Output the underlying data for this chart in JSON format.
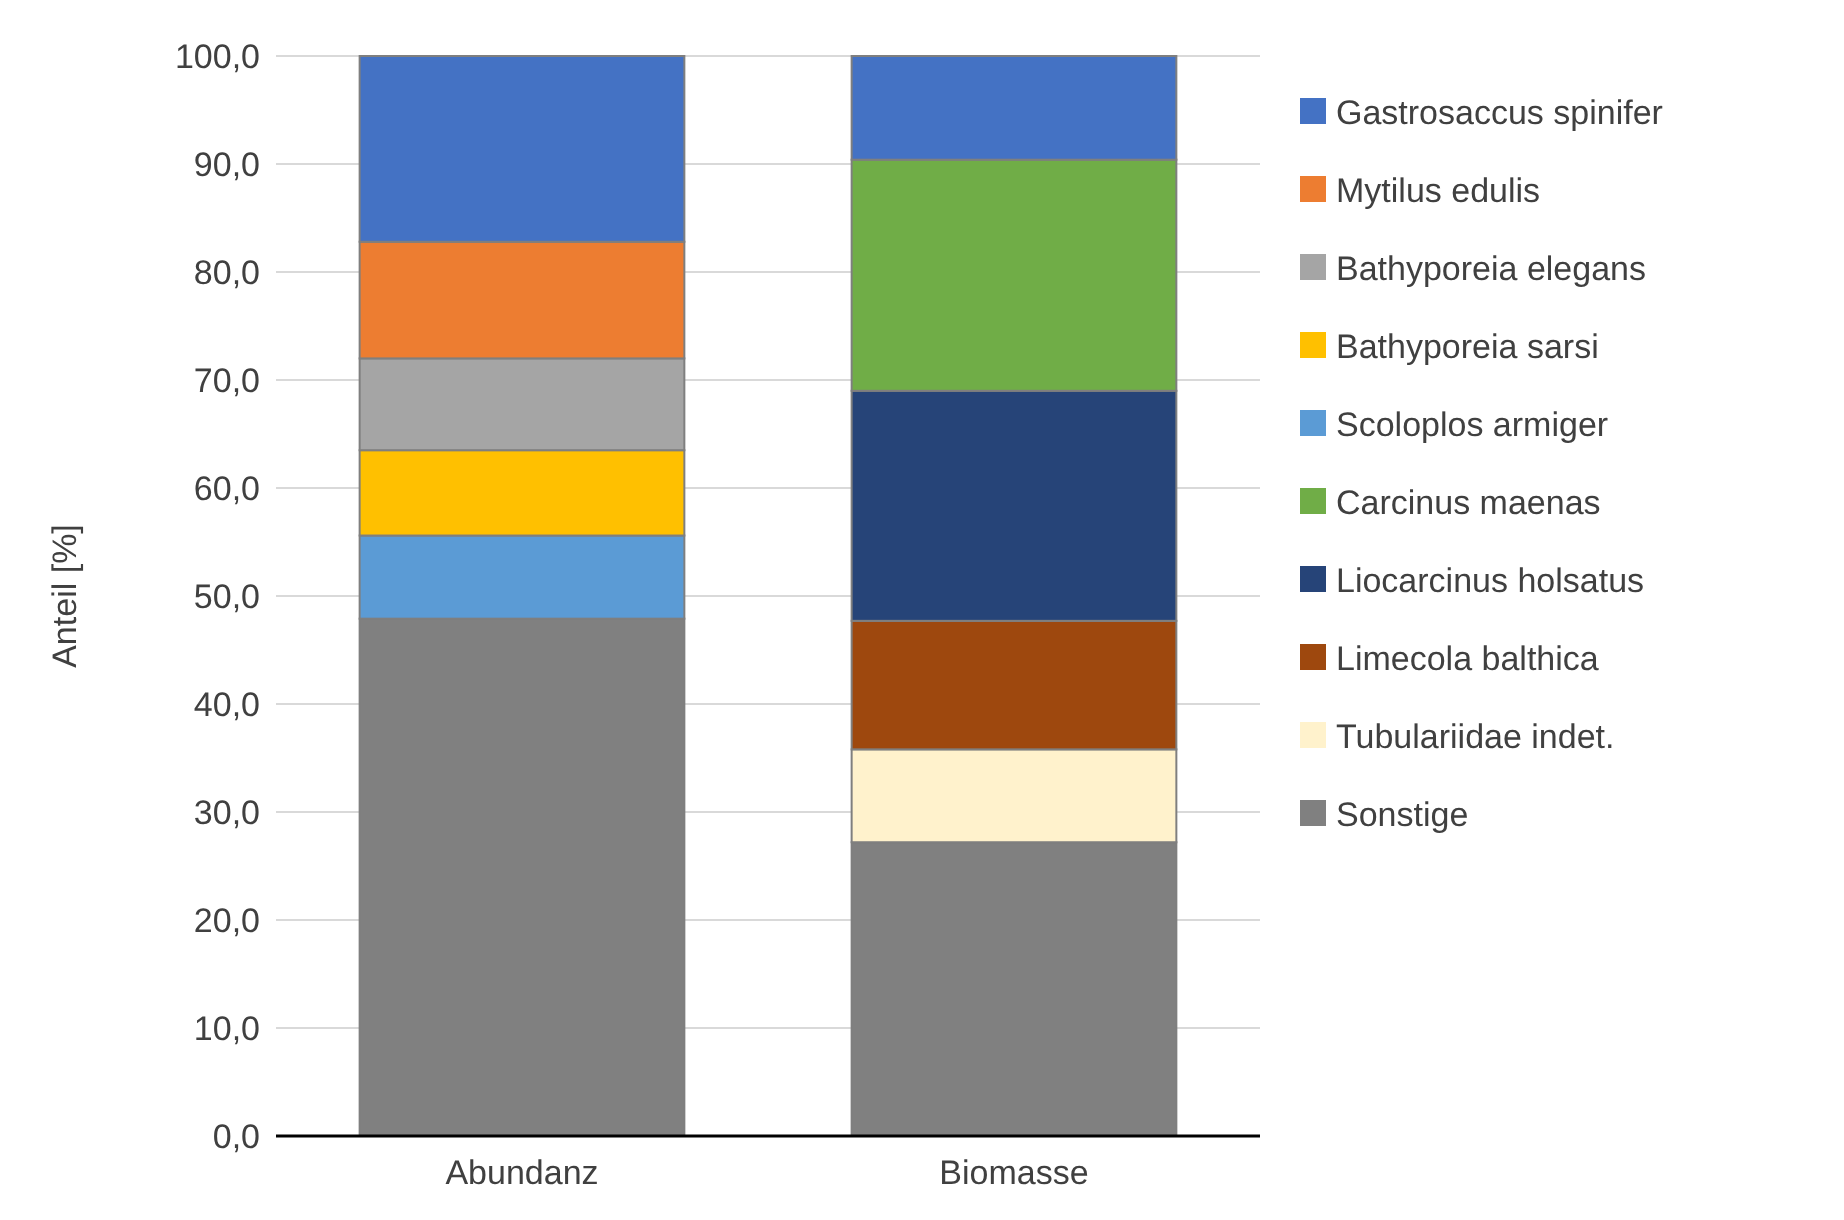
{
  "chart_data": {
    "type": "bar",
    "stacked": true,
    "ylabel": "Anteil [%]",
    "categories": [
      "Abundanz",
      "Biomasse"
    ],
    "ylim": [
      0,
      100
    ],
    "yticks": [
      {
        "value": 0,
        "label": "0,0"
      },
      {
        "value": 10,
        "label": "10,0"
      },
      {
        "value": 20,
        "label": "20,0"
      },
      {
        "value": 30,
        "label": "30,0"
      },
      {
        "value": 40,
        "label": "40,0"
      },
      {
        "value": 50,
        "label": "50,0"
      },
      {
        "value": 60,
        "label": "60,0"
      },
      {
        "value": 70,
        "label": "70,0"
      },
      {
        "value": 80,
        "label": "80,0"
      },
      {
        "value": 90,
        "label": "90,0"
      },
      {
        "value": 100,
        "label": "100,0"
      }
    ],
    "grid": "y",
    "legend": "right",
    "series": [
      {
        "name": "Sonstige",
        "color": "#808080",
        "values": [
          47.9,
          27.2
        ]
      },
      {
        "name": "Tubulariidae indet.",
        "color": "#fff2cc",
        "values": [
          0,
          8.6
        ]
      },
      {
        "name": "Limecola balthica",
        "color": "#9e480e",
        "values": [
          0,
          11.9
        ]
      },
      {
        "name": "Liocarcinus holsatus",
        "color": "#264478",
        "values": [
          0,
          21.3
        ]
      },
      {
        "name": "Carcinus maenas",
        "color": "#70ad47",
        "values": [
          0,
          21.4
        ]
      },
      {
        "name": "Scoloplos armiger",
        "color": "#5b9bd5",
        "values": [
          7.7,
          0
        ]
      },
      {
        "name": "Bathyporeia sarsi",
        "color": "#ffc000",
        "values": [
          7.9,
          0
        ]
      },
      {
        "name": "Bathyporeia elegans",
        "color": "#a5a5a5",
        "values": [
          8.5,
          0
        ]
      },
      {
        "name": "Mytilus edulis",
        "color": "#ed7d31",
        "values": [
          10.8,
          0
        ]
      },
      {
        "name": "Gastrosaccus spinifer",
        "color": "#4472c4",
        "values": [
          17.2,
          9.6
        ]
      }
    ]
  }
}
